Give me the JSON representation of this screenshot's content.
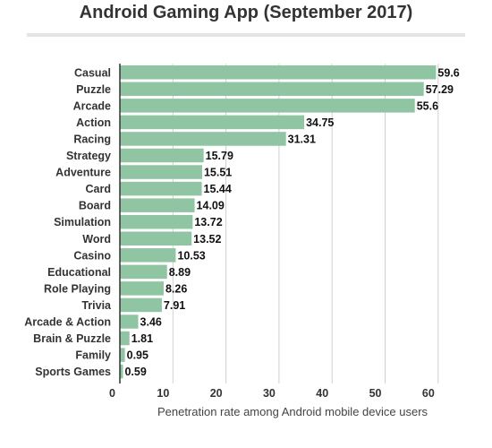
{
  "chart_data": {
    "type": "bar",
    "orientation": "horizontal",
    "title": "Android Gaming App (September 2017)",
    "xlabel": "Penetration rate among Android mobile device users",
    "ylabel": "",
    "categories": [
      "Casual",
      "Puzzle",
      "Arcade",
      "Action",
      "Racing",
      "Strategy",
      "Adventure",
      "Card",
      "Board",
      "Simulation",
      "Word",
      "Casino",
      "Educational",
      "Role Playing",
      "Trivia",
      "Arcade & Action",
      "Brain & Puzzle",
      "Family",
      "Sports Games"
    ],
    "values": [
      59.6,
      57.29,
      55.6,
      34.75,
      31.31,
      15.79,
      15.51,
      15.44,
      14.09,
      13.72,
      13.52,
      10.53,
      8.89,
      8.26,
      7.91,
      3.46,
      1.81,
      0.95,
      0.59
    ],
    "value_labels": [
      "59.6",
      "57.29",
      "55.6",
      "34.75",
      "31.31",
      "15.79",
      "15.51",
      "15.44",
      "14.09",
      "13.72",
      "13.52",
      "10.53",
      "8.89",
      "8.26",
      "7.91",
      "3.46",
      "1.81",
      "0.95",
      "0.59"
    ],
    "xticks": [
      "0",
      "10",
      "20",
      "30",
      "40",
      "50",
      "60"
    ],
    "xlim": [
      0,
      60
    ],
    "grid": "vertical",
    "legend": "none",
    "colors": {
      "bar": "#8fc5a3",
      "grid": "#d0d0d0",
      "axis": "#333333",
      "text": "#333333",
      "title_rule": "#e4e4e4"
    }
  }
}
